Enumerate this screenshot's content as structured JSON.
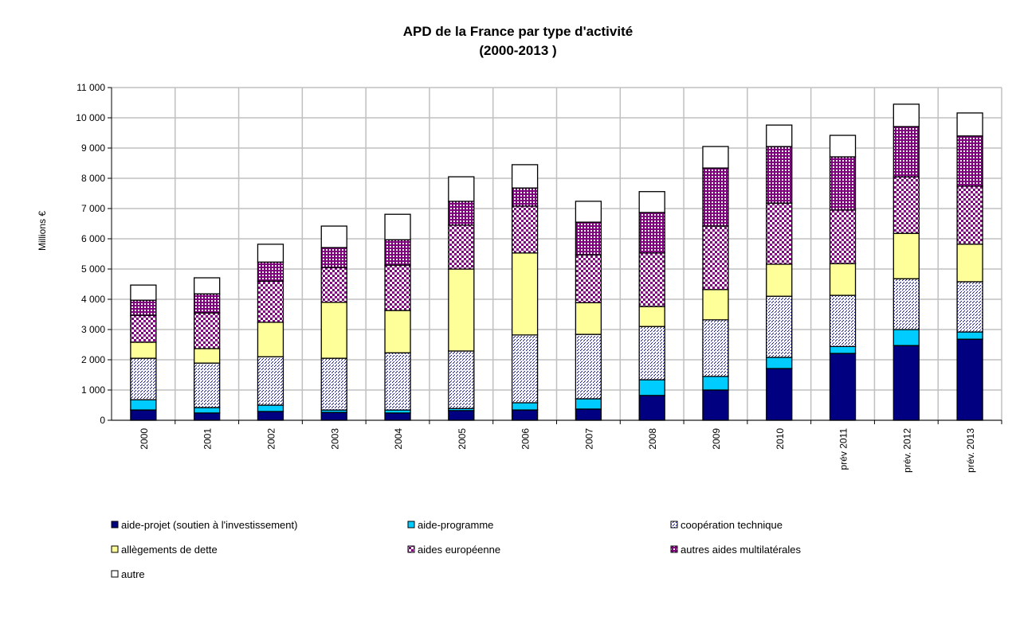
{
  "chart_data": {
    "type": "bar",
    "stacked": true,
    "title": "APD de la France par type d'activité",
    "subtitle": "(2000-2013 )",
    "xlabel": "",
    "ylabel": "Millions €",
    "ylim": [
      0,
      11000
    ],
    "yticks": [
      0,
      1000,
      2000,
      3000,
      4000,
      5000,
      6000,
      7000,
      8000,
      9000,
      10000,
      11000
    ],
    "ytick_labels": [
      "0",
      "1 000",
      "2 000",
      "3 000",
      "4 000",
      "5 000",
      "6 000",
      "7 000",
      "8 000",
      "9 000",
      "10 000",
      "11 000"
    ],
    "grid": true,
    "legend_position": "bottom",
    "categories": [
      "2000",
      "2001",
      "2002",
      "2003",
      "2004",
      "2005",
      "2006",
      "2007",
      "2008",
      "2009",
      "2010",
      "prév  2011",
      "prév. 2012",
      "prév. 2013"
    ],
    "series": [
      {
        "name": "aide-projet (soutien à l'investissement)",
        "color": "#000080",
        "pattern": "solid",
        "values": [
          340,
          240,
          290,
          260,
          240,
          320,
          340,
          370,
          820,
          1000,
          1710,
          2210,
          2470,
          2680
        ]
      },
      {
        "name": "aide-programme",
        "color": "#00CCFF",
        "pattern": "solid",
        "values": [
          340,
          180,
          210,
          80,
          100,
          70,
          240,
          340,
          520,
          450,
          370,
          230,
          530,
          240
        ]
      },
      {
        "name": "coopération technique",
        "color": "#000080",
        "pattern": "dots",
        "values": [
          1370,
          1470,
          1600,
          1710,
          1890,
          1900,
          2240,
          2130,
          1760,
          1870,
          2020,
          1690,
          1680,
          1660
        ]
      },
      {
        "name": "allègements de dette",
        "color": "#FFFF99",
        "pattern": "solid",
        "values": [
          530,
          480,
          1140,
          1850,
          1400,
          2710,
          2710,
          1050,
          660,
          1000,
          1060,
          1050,
          1500,
          1240
        ]
      },
      {
        "name": "aides européenne",
        "color": "#800080",
        "pattern": "checker",
        "values": [
          890,
          1180,
          1360,
          1150,
          1500,
          1450,
          1550,
          1580,
          1770,
          2100,
          2020,
          1770,
          1870,
          1920
        ]
      },
      {
        "name": "autres aides multilatérales",
        "color": "#800080",
        "pattern": "fine-checker",
        "values": [
          500,
          630,
          630,
          660,
          840,
          790,
          600,
          1080,
          1340,
          1920,
          1870,
          1760,
          1660,
          1660
        ]
      },
      {
        "name": "autre",
        "color": "#FFFFFF",
        "pattern": "solid",
        "values": [
          500,
          530,
          590,
          710,
          840,
          810,
          770,
          690,
          690,
          710,
          710,
          710,
          740,
          760
        ]
      }
    ]
  }
}
